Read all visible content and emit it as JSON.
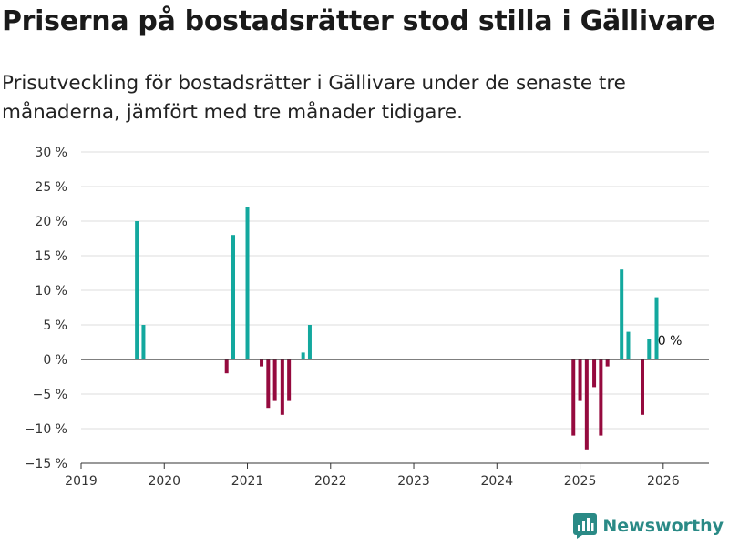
{
  "header": {
    "title": "Priserna på bostadsrätter stod stilla i Gällivare",
    "subtitle": "Prisutveckling för bostadsrätter i Gällivare under de senaste tre månaderna, jämfört med tre månader tidigare."
  },
  "brand": {
    "name": "Newsworthy"
  },
  "colors": {
    "positive": "#13a89e",
    "negative": "#950a3e",
    "grid": "#dddddd",
    "axis": "#333333"
  },
  "chart_data": {
    "type": "bar",
    "title": "Priserna på bostadsrätter stod stilla i Gällivare",
    "ylim": [
      -15,
      30
    ],
    "xlim": [
      2019.0,
      2026.55
    ],
    "yticks": [
      -15,
      -10,
      -5,
      0,
      5,
      10,
      15,
      20,
      25,
      30
    ],
    "ytick_labels": [
      "−15 %",
      "−10 %",
      "−5 %",
      "0 %",
      "5 %",
      "10 %",
      "15 %",
      "20 %",
      "25 %",
      "30 %"
    ],
    "xticks": [
      2019,
      2020,
      2021,
      2022,
      2023,
      2024,
      2025,
      2026
    ],
    "xtick_labels": [
      "2019",
      "2020",
      "2021",
      "2022",
      "2023",
      "2024",
      "2025",
      "2026"
    ],
    "last_value_label": "0 %",
    "series": [
      {
        "name": "Prisutveckling",
        "points": [
          {
            "x": 2019.67,
            "y": 20
          },
          {
            "x": 2019.75,
            "y": 5
          },
          {
            "x": 2020.75,
            "y": -2
          },
          {
            "x": 2020.83,
            "y": 18
          },
          {
            "x": 2021.0,
            "y": 22
          },
          {
            "x": 2021.17,
            "y": -1
          },
          {
            "x": 2021.25,
            "y": -7
          },
          {
            "x": 2021.33,
            "y": -6
          },
          {
            "x": 2021.42,
            "y": -8
          },
          {
            "x": 2021.5,
            "y": -6
          },
          {
            "x": 2021.67,
            "y": 1
          },
          {
            "x": 2021.75,
            "y": 5
          },
          {
            "x": 2024.92,
            "y": -11
          },
          {
            "x": 2025.0,
            "y": -6
          },
          {
            "x": 2025.08,
            "y": -13
          },
          {
            "x": 2025.17,
            "y": -4
          },
          {
            "x": 2025.25,
            "y": -11
          },
          {
            "x": 2025.33,
            "y": -1
          },
          {
            "x": 2025.5,
            "y": 13
          },
          {
            "x": 2025.58,
            "y": 4
          },
          {
            "x": 2025.75,
            "y": -8
          },
          {
            "x": 2025.83,
            "y": 3
          },
          {
            "x": 2025.92,
            "y": 9
          },
          {
            "x": 2026.0,
            "y": 0
          }
        ]
      }
    ]
  }
}
